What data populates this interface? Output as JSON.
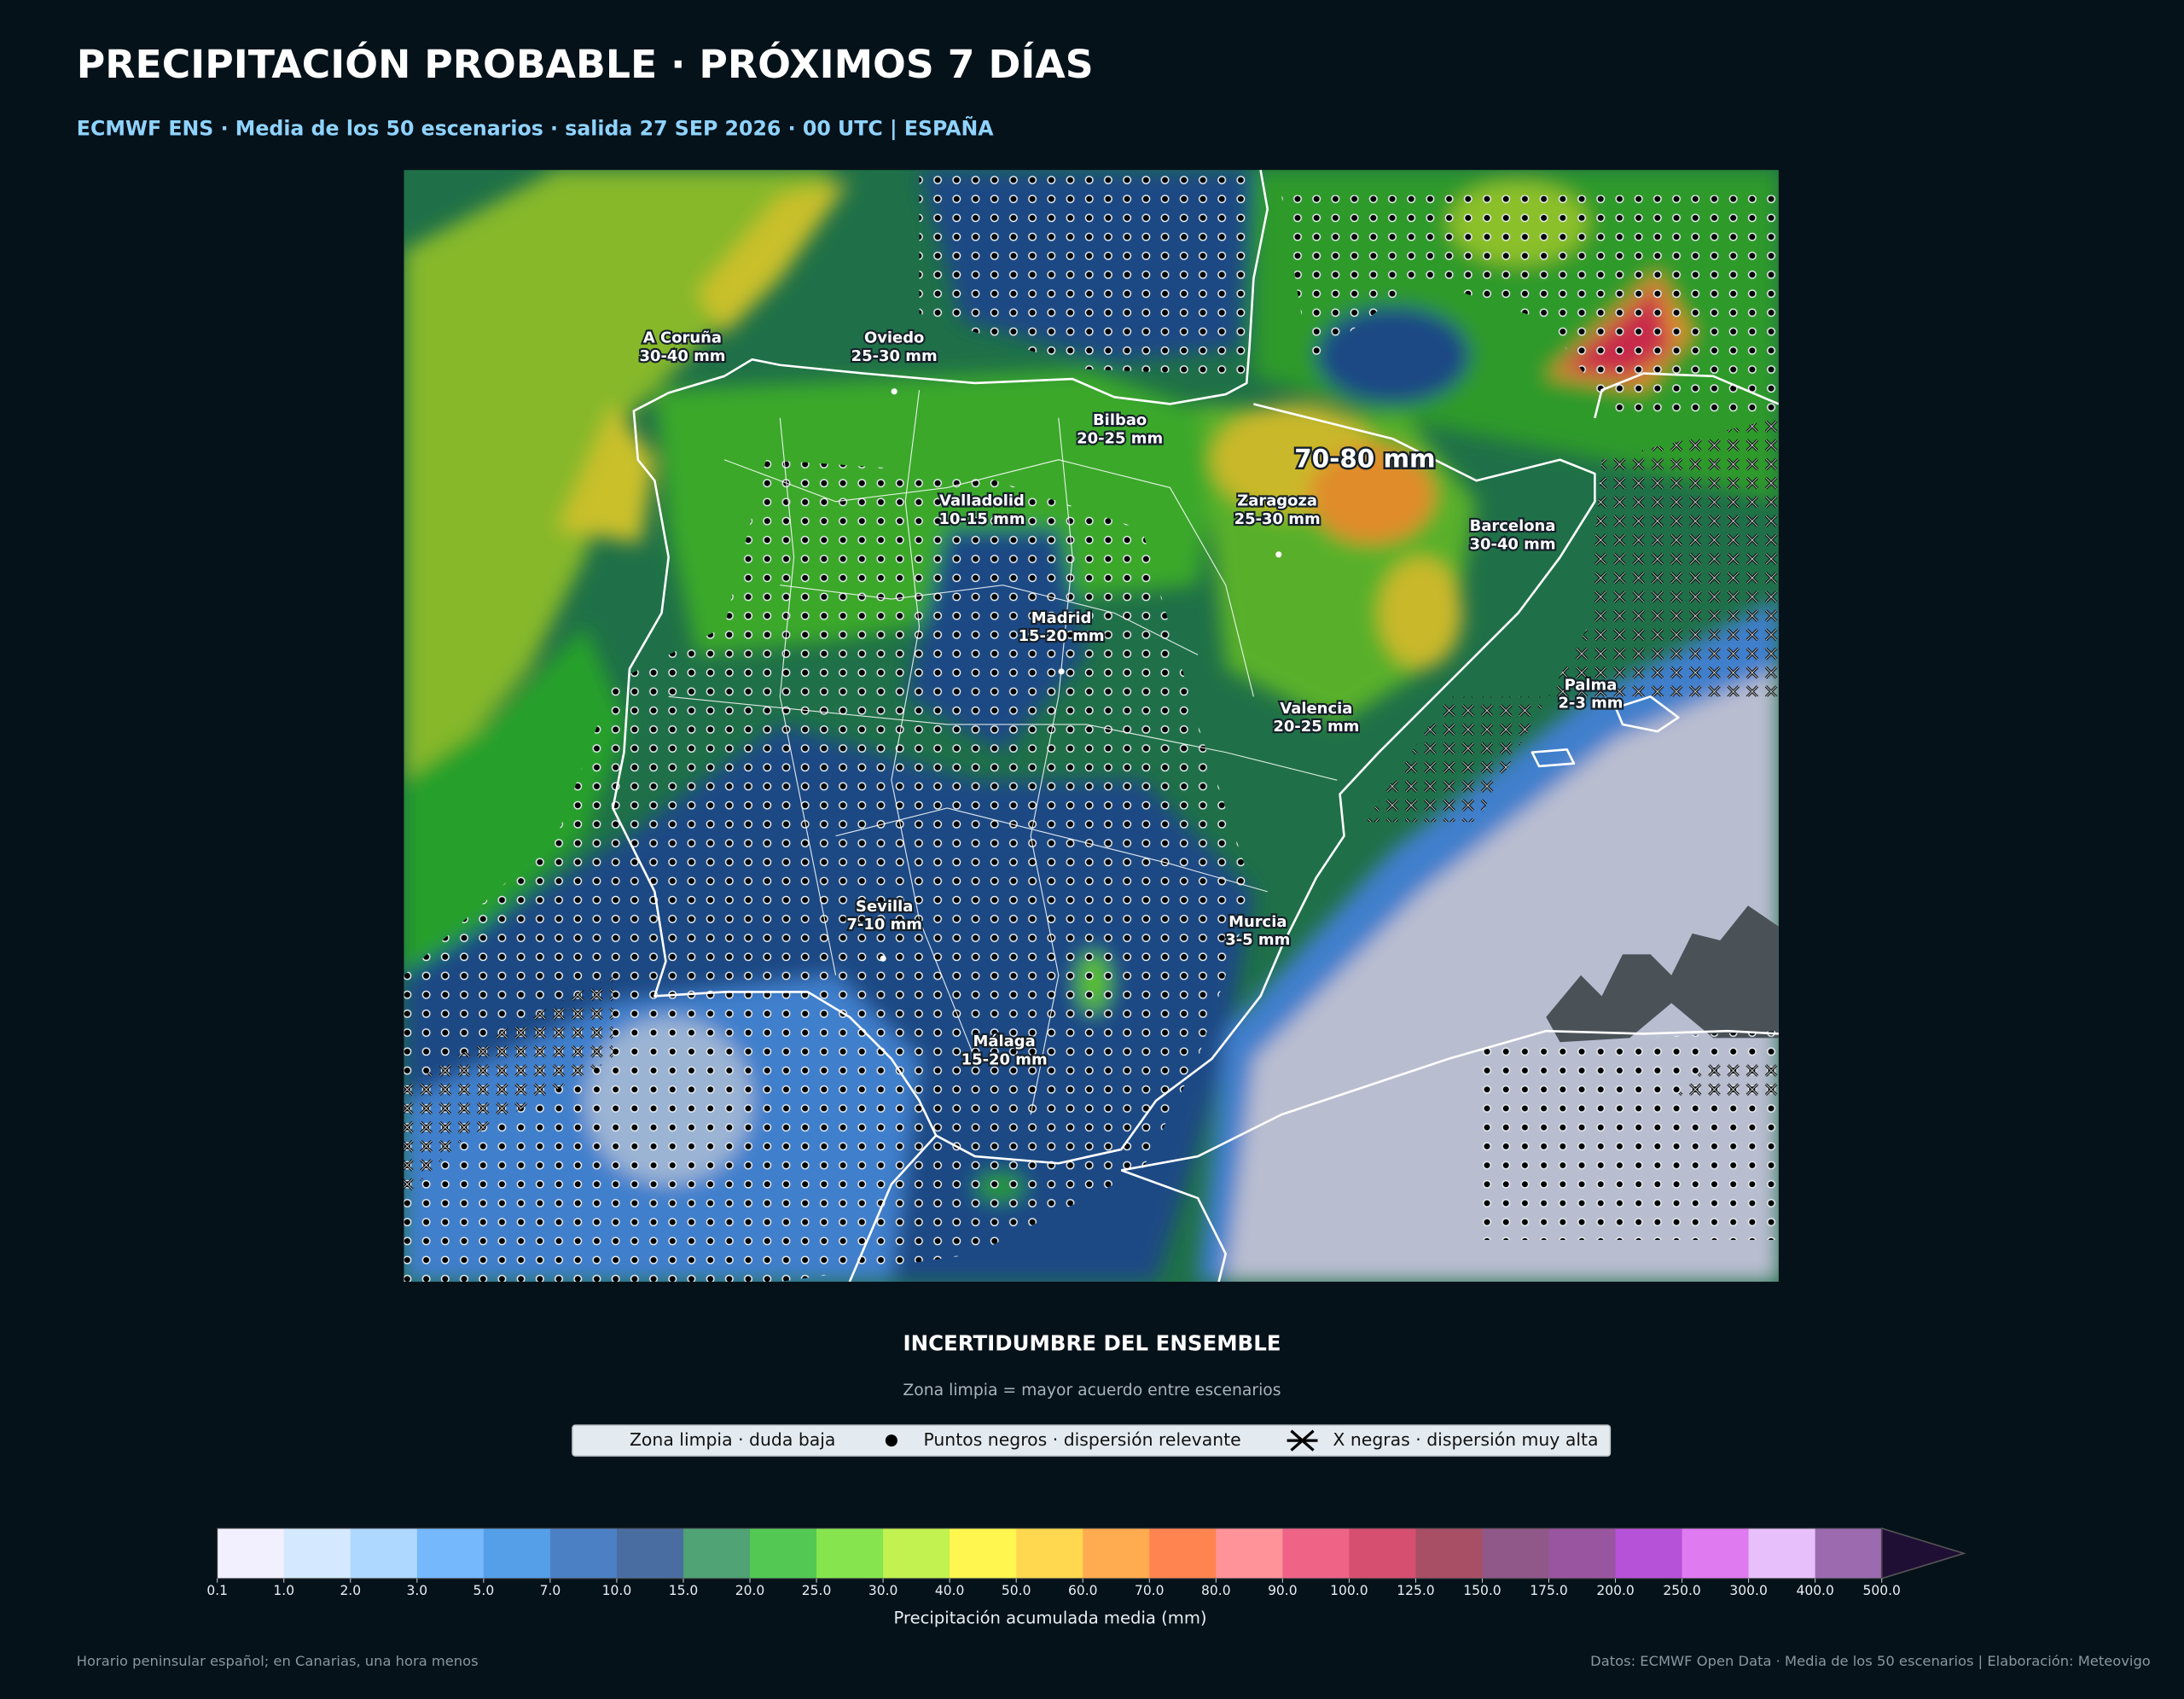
{
  "header": {
    "title": "PRECIPITACIÓN PROBABLE · PRÓXIMOS 7 DÍAS",
    "subtitle": "ECMWF ENS · Media de los 50 escenarios · salida 27 SEP 2026 · 00 UTC | ESPAÑA"
  },
  "map": {
    "labels": [
      {
        "name": "A Coruña",
        "value": "30-40 mm"
      },
      {
        "name": "Oviedo",
        "value": "25-30 mm"
      },
      {
        "name": "Bilbao",
        "value": "20-25 mm"
      },
      {
        "name": "Valladolid",
        "value": "10-15 mm"
      },
      {
        "name": "Zaragoza",
        "value": "25-30 mm"
      },
      {
        "name": "Barcelona",
        "value": "30-40 mm"
      },
      {
        "name": "Madrid",
        "value": "15-20 mm"
      },
      {
        "name": "Valencia",
        "value": "20-25 mm"
      },
      {
        "name": "Palma",
        "value": "2-3 mm"
      },
      {
        "name": "Sevilla",
        "value": "7-10 mm"
      },
      {
        "name": "Murcia",
        "value": "3-5 mm"
      },
      {
        "name": "Málaga",
        "value": "15-20 mm"
      }
    ],
    "highlight": "70-80 mm"
  },
  "uncertainty": {
    "title": "INCERTIDUMBRE DEL ENSEMBLE",
    "subtitle": "Zona limpia = mayor acuerdo entre escenarios",
    "items": [
      "Zona limpia · duda baja",
      "Puntos negros · dispersión relevante",
      "X negras · dispersión muy alta"
    ]
  },
  "colorbar": {
    "bounds": [
      0.1,
      {
        "value": 1,
        "label": "1.0"
      },
      {
        "value": 2,
        "label": "2.0"
      },
      {
        "value": 3,
        "label": "3.0"
      },
      {
        "value": 5,
        "label": "5.0"
      },
      {
        "value": 7,
        "label": "7.0"
      },
      {
        "value": 10,
        "label": "10.0"
      },
      {
        "value": 15,
        "label": "15.0"
      },
      {
        "value": 20,
        "label": "20.0"
      },
      {
        "value": 25,
        "label": "25.0"
      },
      {
        "value": 30,
        "label": "30.0"
      },
      {
        "value": 40,
        "label": "40.0"
      },
      {
        "value": 50,
        "label": "50.0"
      },
      {
        "value": 60,
        "label": "60.0"
      },
      {
        "value": 70,
        "label": "70.0"
      },
      {
        "value": 80,
        "label": "80.0"
      },
      {
        "value": 90,
        "label": "90.0"
      },
      {
        "value": 100,
        "label": "100.0"
      },
      {
        "value": 125,
        "label": "125.0"
      },
      {
        "value": 150,
        "label": "150.0"
      },
      {
        "value": 175,
        "label": "175.0"
      },
      {
        "value": 200,
        "label": "200.0"
      },
      {
        "value": 250,
        "label": "250.0"
      },
      {
        "value": 300,
        "label": "300.0"
      },
      {
        "value": 400,
        "label": "400.0"
      },
      {
        "value": 500,
        "label": "500.0"
      }
    ],
    "colors": [
      "#f2f0ff",
      "#d4e9ff",
      "#aed8ff",
      "#75b8fb",
      "#559fe8",
      "#4c80c4",
      "#4a6da1",
      "#4fa374",
      "#53c953",
      "#86e54f",
      "#c2f24f",
      "#fff64f",
      "#ffd84f",
      "#ffab4f",
      "#ff8450",
      "#ff9399",
      "#ef6387",
      "#d74f70",
      "#a84f65",
      "#8f5888",
      "#9a55a0",
      "#b652d8",
      "#e07af0",
      "#e7c0fb",
      "#9b6aaf"
    ],
    "extend_color": "#1f0f35",
    "label": "Precipitación acumulada media (mm)"
  },
  "footer": {
    "left": "Horario peninsular español; en Canarias, una hora menos",
    "right": "Datos: ECMWF Open Data · Media de los 50 escenarios | Elaboración: Meteovigo"
  }
}
